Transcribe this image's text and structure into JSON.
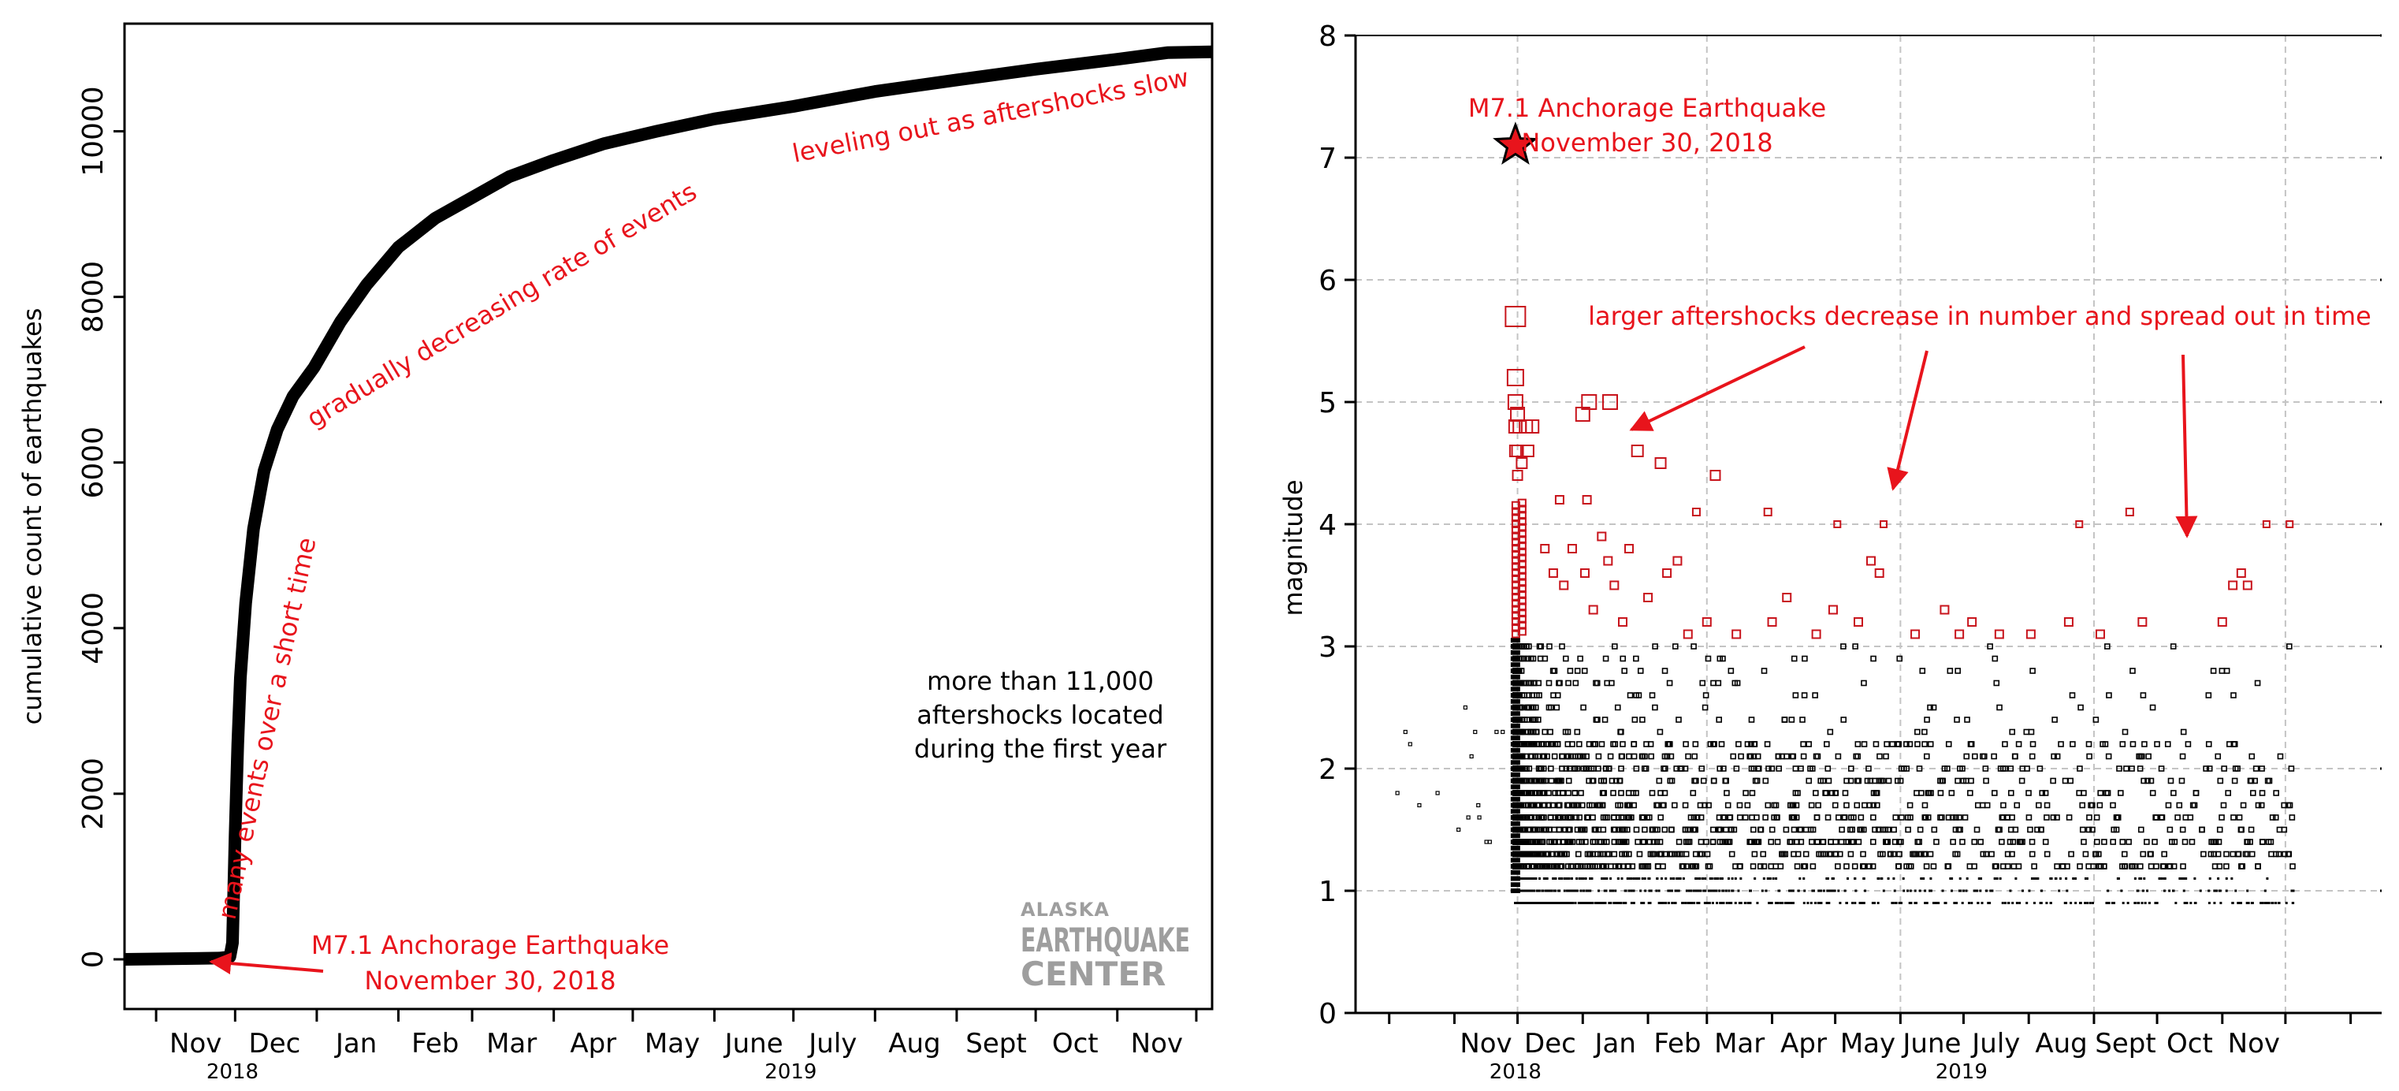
{
  "chart_data": [
    {
      "type": "line",
      "title": "",
      "ylabel": "cumulative count of earthquakes",
      "ylim": [
        -600,
        11300
      ],
      "yticks": [
        0,
        2000,
        4000,
        6000,
        8000,
        10000
      ],
      "x_start": "2018-10-20",
      "x_end": "2019-12-07",
      "month_labels": [
        "Nov",
        "Dec",
        "Jan",
        "Feb",
        "Mar",
        "Apr",
        "May",
        "June",
        "July",
        "Aug",
        "Sept",
        "Oct",
        "Nov"
      ],
      "year_labels": [
        {
          "label": "2018",
          "x": "2018-11-30"
        },
        {
          "label": "2019",
          "x": "2019-06-30"
        }
      ],
      "series": [
        {
          "x": [
            "2018-10-20",
            "2018-11-25",
            "2018-11-29",
            "2018-11-30",
            "2018-12-01",
            "2018-12-02",
            "2018-12-03",
            "2018-12-05",
            "2018-12-08",
            "2018-12-12",
            "2018-12-17",
            "2018-12-23",
            "2018-12-31",
            "2019-01-10",
            "2019-01-20",
            "2019-02-01",
            "2019-02-15",
            "2019-03-01",
            "2019-03-15",
            "2019-04-01",
            "2019-04-20",
            "2019-05-10",
            "2019-06-01",
            "2019-07-01",
            "2019-08-01",
            "2019-09-01",
            "2019-10-01",
            "2019-11-01",
            "2019-11-20",
            "2019-12-07"
          ],
          "y": [
            0,
            15,
            30,
            200,
            1500,
            2600,
            3400,
            4300,
            5200,
            5900,
            6400,
            6800,
            7150,
            7700,
            8150,
            8600,
            8950,
            9200,
            9450,
            9650,
            9850,
            10000,
            10150,
            10300,
            10480,
            10620,
            10750,
            10870,
            10950,
            10960
          ]
        }
      ],
      "annotations": {
        "mainshock_line1": "M7.1 Anchorage Earthquake",
        "mainshock_line2": "November 30, 2018",
        "steep": "many events over a short time",
        "decreasing": "gradually decreasing rate of events",
        "leveling": "leveling out as aftershocks slow",
        "summary_line1": "more than 11,000",
        "summary_line2": "aftershocks located",
        "summary_line3": "during the first year"
      },
      "logo": {
        "line1": "ALASKA",
        "line2": "EARTHQUAKE",
        "line3": "CENTER"
      }
    },
    {
      "type": "scatter",
      "title": "",
      "ylabel": "magnitude",
      "ylim": [
        0,
        8
      ],
      "yticks": [
        0,
        1,
        2,
        3,
        4,
        5,
        6,
        7,
        8
      ],
      "x_start": "2018-09-15",
      "x_end": "2020-01-15",
      "grid": true,
      "month_labels": [
        "Nov",
        "Dec",
        "Jan",
        "Feb",
        "Mar",
        "Apr",
        "May",
        "June",
        "July",
        "Aug",
        "Sept",
        "Oct",
        "Nov"
      ],
      "year_labels": [
        {
          "label": "2018",
          "x": "2018-11-30"
        },
        {
          "label": "2019",
          "x": "2019-06-30"
        }
      ],
      "mainshock": {
        "x": "2018-11-30",
        "y": 7.1,
        "label_line1": "M7.1 Anchorage Earthquake",
        "label_line2": "November 30, 2018"
      },
      "large_aftershocks": [
        {
          "x": "2018-11-30",
          "y": 5.7
        },
        {
          "x": "2018-11-30",
          "y": 5.2
        },
        {
          "x": "2018-11-30",
          "y": 5.0
        },
        {
          "x": "2018-12-01",
          "y": 4.9
        },
        {
          "x": "2018-12-02",
          "y": 4.8
        },
        {
          "x": "2018-11-30",
          "y": 4.8
        },
        {
          "x": "2018-12-05",
          "y": 4.8
        },
        {
          "x": "2018-12-08",
          "y": 4.8
        },
        {
          "x": "2018-12-01",
          "y": 4.6
        },
        {
          "x": "2018-11-30",
          "y": 4.6
        },
        {
          "x": "2018-12-03",
          "y": 4.5
        },
        {
          "x": "2018-12-01",
          "y": 4.4
        },
        {
          "x": "2018-12-06",
          "y": 4.6
        },
        {
          "x": "2018-12-21",
          "y": 4.2
        },
        {
          "x": "2019-01-01",
          "y": 4.9
        },
        {
          "x": "2019-01-04",
          "y": 5.0
        },
        {
          "x": "2019-01-14",
          "y": 5.0
        },
        {
          "x": "2019-01-03",
          "y": 4.2
        },
        {
          "x": "2019-01-27",
          "y": 4.6
        },
        {
          "x": "2019-02-07",
          "y": 4.5
        },
        {
          "x": "2019-02-24",
          "y": 4.1
        },
        {
          "x": "2019-03-05",
          "y": 4.4
        },
        {
          "x": "2019-03-30",
          "y": 4.1
        },
        {
          "x": "2019-05-02",
          "y": 4.0
        },
        {
          "x": "2019-05-24",
          "y": 4.0
        },
        {
          "x": "2019-08-25",
          "y": 4.0
        },
        {
          "x": "2019-09-18",
          "y": 4.1
        },
        {
          "x": "2019-11-22",
          "y": 4.0
        },
        {
          "x": "2019-12-03",
          "y": 4.0
        }
      ],
      "medium_aftershocks": [
        {
          "x": "2018-12-14",
          "y": 3.8
        },
        {
          "x": "2018-12-18",
          "y": 3.6
        },
        {
          "x": "2018-12-23",
          "y": 3.5
        },
        {
          "x": "2018-12-27",
          "y": 3.8
        },
        {
          "x": "2019-01-02",
          "y": 3.6
        },
        {
          "x": "2019-01-06",
          "y": 3.3
        },
        {
          "x": "2019-01-10",
          "y": 3.9
        },
        {
          "x": "2019-01-13",
          "y": 3.7
        },
        {
          "x": "2019-01-16",
          "y": 3.5
        },
        {
          "x": "2019-01-20",
          "y": 3.2
        },
        {
          "x": "2019-01-23",
          "y": 3.8
        },
        {
          "x": "2019-02-01",
          "y": 3.4
        },
        {
          "x": "2019-02-10",
          "y": 3.6
        },
        {
          "x": "2019-02-15",
          "y": 3.7
        },
        {
          "x": "2019-02-20",
          "y": 3.1
        },
        {
          "x": "2019-03-01",
          "y": 3.2
        },
        {
          "x": "2019-03-15",
          "y": 3.1
        },
        {
          "x": "2019-04-01",
          "y": 3.2
        },
        {
          "x": "2019-04-08",
          "y": 3.4
        },
        {
          "x": "2019-04-22",
          "y": 3.1
        },
        {
          "x": "2019-04-30",
          "y": 3.3
        },
        {
          "x": "2019-05-12",
          "y": 3.2
        },
        {
          "x": "2019-05-18",
          "y": 3.7
        },
        {
          "x": "2019-05-22",
          "y": 3.6
        },
        {
          "x": "2019-06-08",
          "y": 3.1
        },
        {
          "x": "2019-06-22",
          "y": 3.3
        },
        {
          "x": "2019-06-29",
          "y": 3.1
        },
        {
          "x": "2019-07-05",
          "y": 3.2
        },
        {
          "x": "2019-07-18",
          "y": 3.1
        },
        {
          "x": "2019-08-02",
          "y": 3.1
        },
        {
          "x": "2019-08-20",
          "y": 3.2
        },
        {
          "x": "2019-09-04",
          "y": 3.1
        },
        {
          "x": "2019-09-24",
          "y": 3.2
        },
        {
          "x": "2019-11-01",
          "y": 3.2
        },
        {
          "x": "2019-11-06",
          "y": 3.5
        },
        {
          "x": "2019-11-10",
          "y": 3.6
        },
        {
          "x": "2019-11-13",
          "y": 3.5
        }
      ]
    }
  ],
  "right_annotation": "larger aftershocks decrease in number and spread out in time",
  "colors": {
    "accent": "#e8141c",
    "line": "#000000",
    "grid": "#bdbdbd",
    "logo": "#9e9e9e"
  }
}
